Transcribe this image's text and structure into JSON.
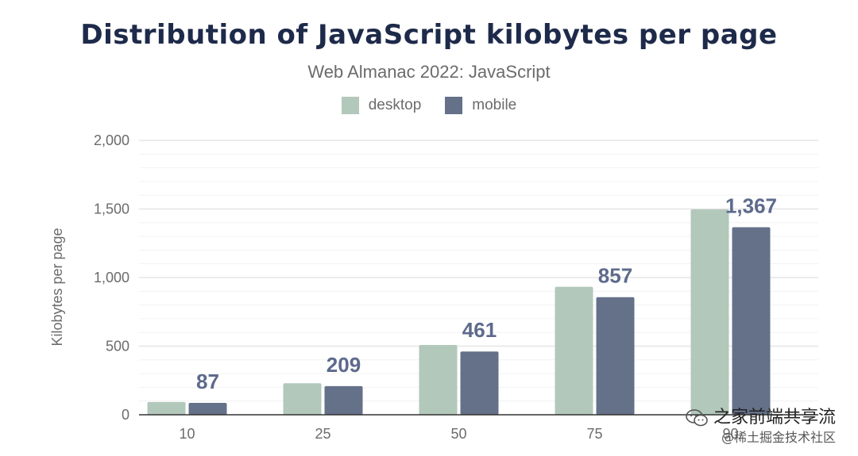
{
  "colors": {
    "desktop": "#b2c8bb",
    "mobile": "#657089",
    "grid": "#e6e6e6",
    "axis": "#333333"
  },
  "chart_data": {
    "type": "bar",
    "title": "Distribution of JavaScript kilobytes per page",
    "subtitle": "Web Almanac 2022: JavaScript",
    "ylabel": "Kilobytes per page",
    "xlabel": "",
    "categories": [
      "10",
      "25",
      "50",
      "75",
      "90"
    ],
    "series": [
      {
        "name": "desktop",
        "values": [
          93,
          230,
          509,
          933,
          1497
        ]
      },
      {
        "name": "mobile",
        "values": [
          87,
          209,
          461,
          857,
          1367
        ]
      }
    ],
    "data_labels": [
      "87",
      "209",
      "461",
      "857",
      "1,367"
    ],
    "ylim": [
      0,
      2000
    ],
    "y_ticks": [
      "0",
      "500",
      "1,000",
      "1,500",
      "2,000"
    ],
    "legend": "top-center",
    "grid": true
  },
  "watermark": {
    "line1": "之家前端共享流",
    "line2": "@稀土掘金技术社区",
    "icon": "wechat-icon"
  }
}
